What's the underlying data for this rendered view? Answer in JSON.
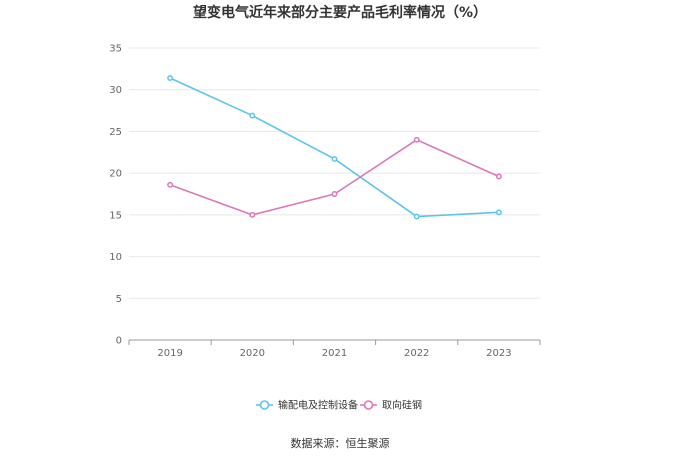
{
  "chart_data": {
    "type": "line",
    "title": "望变电气近年来部分主要产品毛利率情况（%）",
    "categories": [
      "2019",
      "2020",
      "2021",
      "2022",
      "2023"
    ],
    "series": [
      {
        "name": "输配电及控制设备",
        "color": "#5bc4ec",
        "values": [
          31.4,
          26.9,
          21.7,
          14.8,
          15.3
        ]
      },
      {
        "name": "取向硅钢",
        "color": "#dc77b9",
        "values": [
          18.6,
          15.0,
          17.5,
          24.0,
          19.6
        ]
      }
    ],
    "ylim": [
      0,
      35
    ],
    "yticks": [
      0,
      5,
      10,
      15,
      20,
      25,
      30,
      35
    ],
    "xlabel": "",
    "ylabel": "",
    "grid": true,
    "legend_position": "bottom-center"
  },
  "source": "数据来源：恒生聚源"
}
